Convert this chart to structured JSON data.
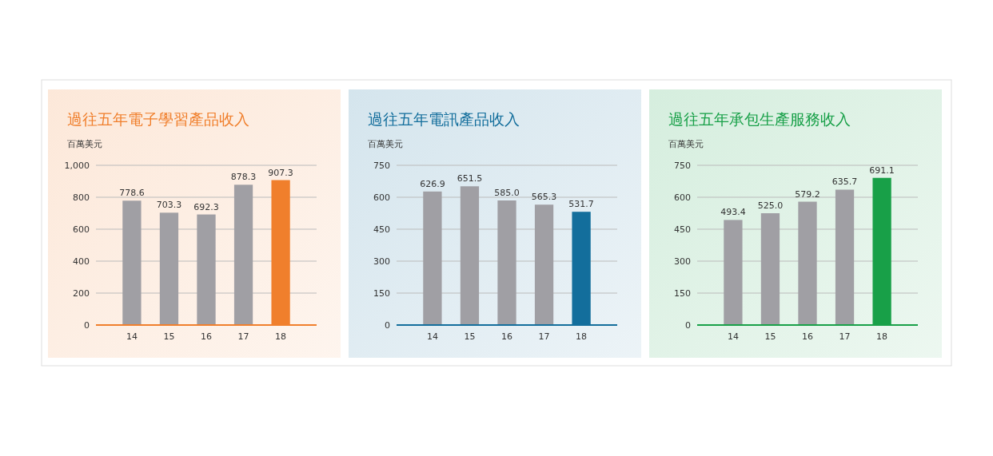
{
  "chart_data": [
    {
      "type": "bar",
      "title": "過往五年電子學習產品收入",
      "ylabel": "百萬美元",
      "categories": [
        "14",
        "15",
        "16",
        "17",
        "18"
      ],
      "values": [
        778.6,
        703.3,
        692.3,
        878.3,
        907.3
      ],
      "value_labels": [
        "778.6",
        "703.3",
        "692.3",
        "878.3",
        "907.3"
      ],
      "colors": [
        "#a09fa4",
        "#a09fa4",
        "#a09fa4",
        "#a09fa4",
        "#f07f2c"
      ],
      "ylim": [
        0,
        1000
      ],
      "yticks": [
        0,
        200,
        400,
        600,
        800,
        {
          "value": 1000,
          "label": "1,000"
        }
      ],
      "grid": "y"
    },
    {
      "type": "bar",
      "title": "過往五年電訊產品收入",
      "ylabel": "百萬美元",
      "categories": [
        "14",
        "15",
        "16",
        "17",
        "18"
      ],
      "values": [
        626.9,
        651.5,
        585.0,
        565.3,
        531.7
      ],
      "value_labels": [
        "626.9",
        "651.5",
        "585.0",
        "565.3",
        "531.7"
      ],
      "colors": [
        "#a09fa4",
        "#a09fa4",
        "#a09fa4",
        "#a09fa4",
        "#136e9c"
      ],
      "ylim": [
        0,
        750
      ],
      "yticks": [
        0,
        150,
        300,
        450,
        600,
        750
      ],
      "grid": "y"
    },
    {
      "type": "bar",
      "title": "過往五年承包生產服務收入",
      "ylabel": "百萬美元",
      "categories": [
        "14",
        "15",
        "16",
        "17",
        "18"
      ],
      "values": [
        493.4,
        525.0,
        579.2,
        635.7,
        691.1
      ],
      "value_labels": [
        "493.4",
        "525.0",
        "579.2",
        "635.7",
        "691.1"
      ],
      "colors": [
        "#a09fa4",
        "#a09fa4",
        "#a09fa4",
        "#a09fa4",
        "#18a048"
      ],
      "ylim": [
        0,
        750
      ],
      "yticks": [
        0,
        150,
        300,
        450,
        600,
        750
      ],
      "grid": "y"
    }
  ]
}
